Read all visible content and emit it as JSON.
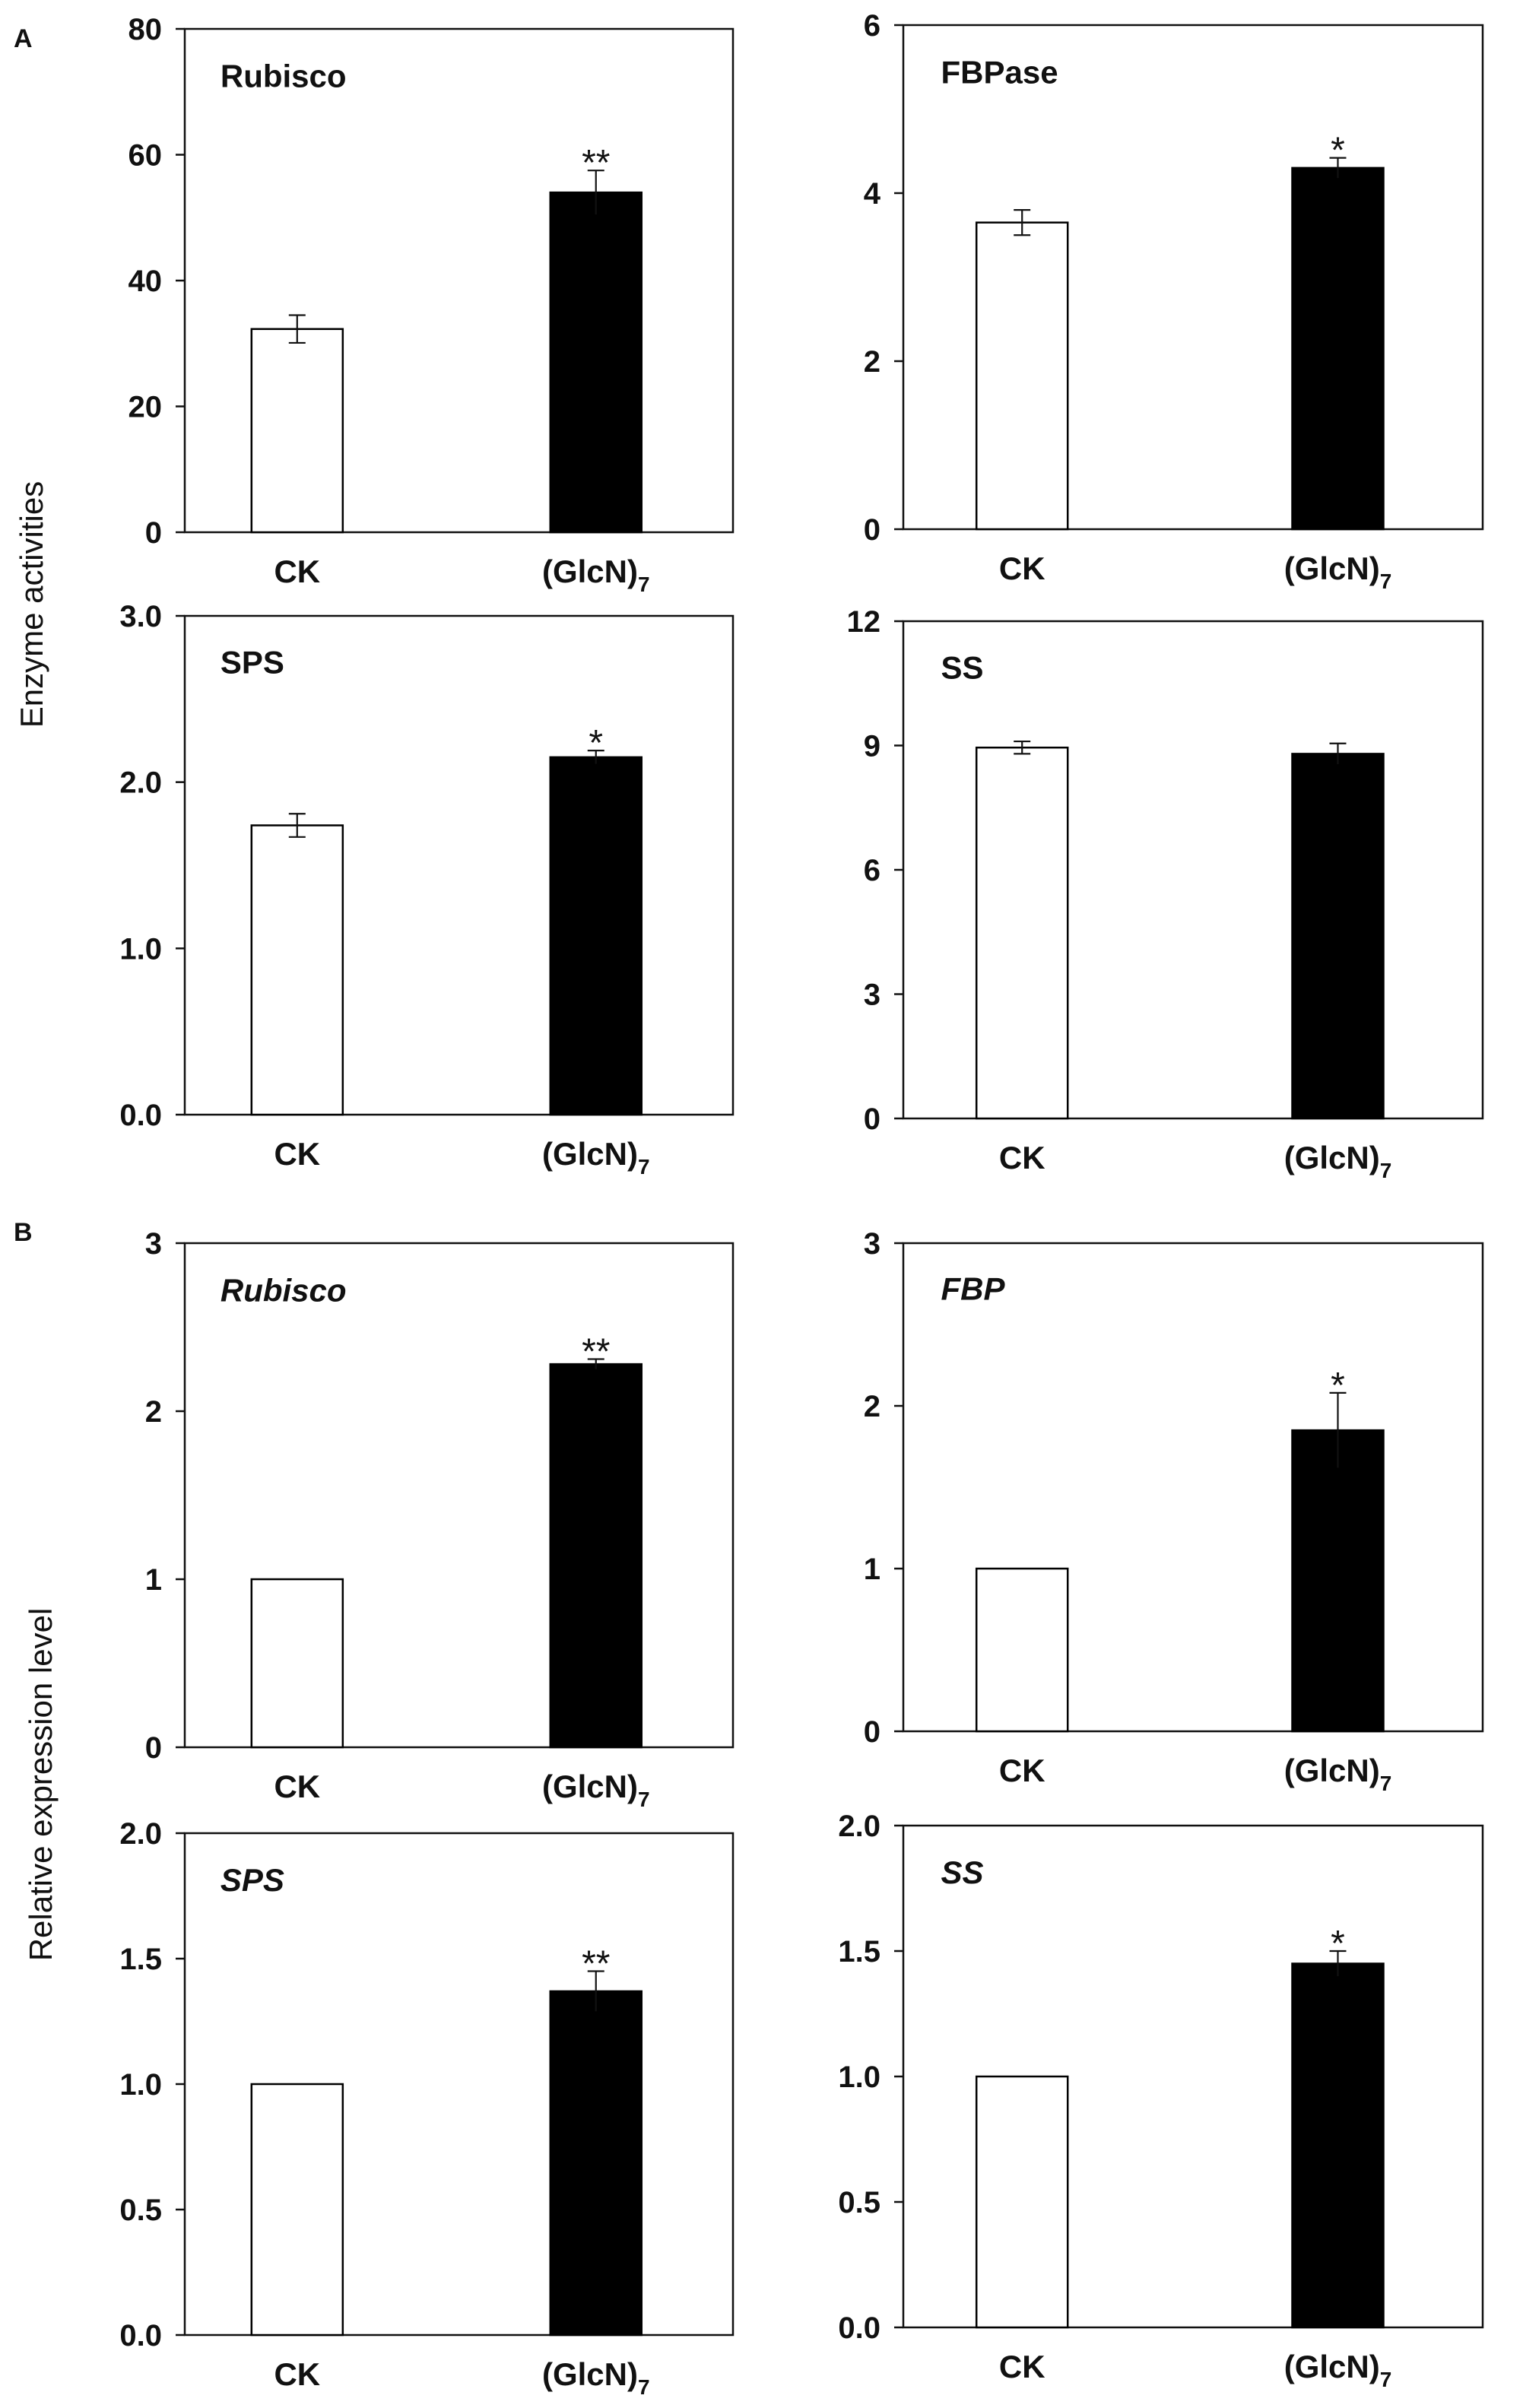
{
  "figure": {
    "panel_labels": [
      "A",
      "B"
    ],
    "ylabels": [
      "Enzyme activities",
      "Relative expression level"
    ]
  },
  "chart_data": [
    {
      "type": "bar",
      "panel": "A",
      "title": "Rubisco",
      "italic": false,
      "categories": [
        "CK",
        "(GlcN)7"
      ],
      "values": [
        32.3,
        54.0
      ],
      "errors": [
        2.2,
        3.5
      ],
      "significance": [
        "",
        "**"
      ],
      "ylim": [
        0,
        80
      ],
      "yticks": [
        "0",
        "20",
        "40",
        "60",
        "80"
      ],
      "ylabel": "Enzyme activities"
    },
    {
      "type": "bar",
      "panel": "A",
      "title": "FBPase",
      "italic": false,
      "categories": [
        "CK",
        "(GlcN)7"
      ],
      "values": [
        3.65,
        4.3
      ],
      "errors": [
        0.15,
        0.12
      ],
      "significance": [
        "",
        "*"
      ],
      "ylim": [
        0,
        6
      ],
      "yticks": [
        "0",
        "2",
        "4",
        "6"
      ],
      "ylabel": "Enzyme activities"
    },
    {
      "type": "bar",
      "panel": "A",
      "title": "SPS",
      "italic": false,
      "categories": [
        "CK",
        "(GlcN)7"
      ],
      "values": [
        1.74,
        2.15
      ],
      "errors": [
        0.07,
        0.04
      ],
      "significance": [
        "",
        "*"
      ],
      "ylim": [
        0,
        3
      ],
      "yticks": [
        "0.0",
        "1.0",
        "2.0",
        "3.0"
      ],
      "ylabel": "Enzyme activities"
    },
    {
      "type": "bar",
      "panel": "A",
      "title": "SS",
      "italic": false,
      "categories": [
        "CK",
        "(GlcN)7"
      ],
      "values": [
        8.95,
        8.8
      ],
      "errors": [
        0.15,
        0.25
      ],
      "significance": [
        "",
        ""
      ],
      "ylim": [
        0,
        12
      ],
      "yticks": [
        "0",
        "3",
        "6",
        "9",
        "12"
      ],
      "ylabel": "Enzyme activities"
    },
    {
      "type": "bar",
      "panel": "B",
      "title": "Rubisco",
      "italic": true,
      "categories": [
        "CK",
        "(GlcN)7"
      ],
      "values": [
        1.0,
        2.28
      ],
      "errors": [
        0,
        0.03
      ],
      "significance": [
        "",
        "**"
      ],
      "ylim": [
        0,
        3
      ],
      "yticks": [
        "0",
        "1",
        "2",
        "3"
      ],
      "ylabel": "Relative expression level"
    },
    {
      "type": "bar",
      "panel": "B",
      "title": "FBP",
      "italic": true,
      "categories": [
        "CK",
        "(GlcN)7"
      ],
      "values": [
        1.0,
        1.85
      ],
      "errors": [
        0,
        0.23
      ],
      "significance": [
        "",
        "*"
      ],
      "ylim": [
        0,
        3
      ],
      "yticks": [
        "0",
        "1",
        "2",
        "3"
      ],
      "ylabel": "Relative expression level"
    },
    {
      "type": "bar",
      "panel": "B",
      "title": "SPS",
      "italic": true,
      "categories": [
        "CK",
        "(GlcN)7"
      ],
      "values": [
        1.0,
        1.37
      ],
      "errors": [
        0,
        0.08
      ],
      "significance": [
        "",
        "**"
      ],
      "ylim": [
        0,
        2
      ],
      "yticks": [
        "0.0",
        "0.5",
        "1.0",
        "1.5",
        "2.0"
      ],
      "ylabel": "Relative expression level"
    },
    {
      "type": "bar",
      "panel": "B",
      "title": "SS",
      "italic": true,
      "categories": [
        "CK",
        "(GlcN)7"
      ],
      "values": [
        1.0,
        1.45
      ],
      "errors": [
        0,
        0.05
      ],
      "significance": [
        "",
        "*"
      ],
      "ylim": [
        0,
        2
      ],
      "yticks": [
        "0.0",
        "0.5",
        "1.0",
        "1.5",
        "2.0"
      ],
      "ylabel": "Relative expression level"
    }
  ]
}
